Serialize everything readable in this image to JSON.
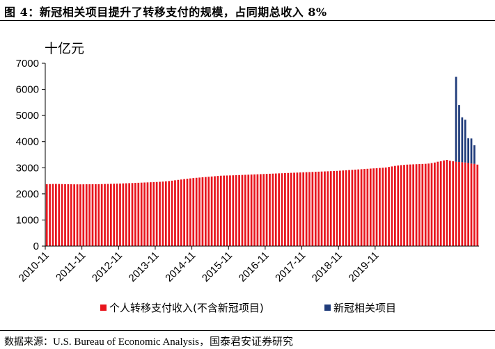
{
  "header": {
    "title": "图 4：新冠相关项目提升了转移支付的规模，占同期总收入 8%"
  },
  "footer": {
    "source_label": "数据来源：",
    "source_text": "U.S. Bureau of Economic Analysis，国泰君安证券研究"
  },
  "colors": {
    "base": "#e8141c",
    "covid": "#1f3b7a",
    "axis": "#000000"
  },
  "chart_data": {
    "type": "bar",
    "stacked": true,
    "unit_label": "十亿元",
    "ylim": [
      0,
      7000
    ],
    "yticks": [
      0,
      1000,
      2000,
      3000,
      4000,
      5000,
      6000,
      7000
    ],
    "x_start": "2010-11",
    "x_end": "2020-12",
    "xticks": [
      "2010-11",
      "2011-11",
      "2012-11",
      "2013-11",
      "2014-11",
      "2015-11",
      "2016-11",
      "2017-11",
      "2018-11",
      "2019-11"
    ],
    "legend_position": "bottom",
    "series": [
      {
        "name": "个人转移支付收入(不含新冠项目)",
        "values": [
          2370,
          2375,
          2378,
          2380,
          2378,
          2375,
          2372,
          2370,
          2368,
          2365,
          2365,
          2365,
          2366,
          2368,
          2368,
          2370,
          2370,
          2372,
          2375,
          2378,
          2380,
          2383,
          2386,
          2390,
          2395,
          2400,
          2405,
          2410,
          2415,
          2420,
          2425,
          2430,
          2435,
          2440,
          2445,
          2450,
          2455,
          2462,
          2470,
          2480,
          2490,
          2505,
          2520,
          2535,
          2550,
          2565,
          2580,
          2592,
          2605,
          2615,
          2625,
          2635,
          2645,
          2655,
          2665,
          2675,
          2685,
          2695,
          2700,
          2703,
          2706,
          2710,
          2715,
          2720,
          2725,
          2730,
          2735,
          2740,
          2745,
          2750,
          2755,
          2760,
          2765,
          2770,
          2775,
          2780,
          2785,
          2790,
          2795,
          2800,
          2805,
          2810,
          2815,
          2820,
          2825,
          2830,
          2835,
          2840,
          2845,
          2850,
          2855,
          2860,
          2865,
          2870,
          2875,
          2880,
          2888,
          2896,
          2904,
          2912,
          2920,
          2928,
          2936,
          2944,
          2952,
          2960,
          2968,
          2976,
          2984,
          2992,
          3000,
          3010,
          3030,
          3050,
          3070,
          3085,
          3100,
          3110,
          3120,
          3125,
          3130,
          3135,
          3140,
          3145,
          3150,
          3160,
          3180,
          3200,
          3230,
          3250,
          3280,
          3300,
          3270,
          3250,
          3230,
          3220,
          3210,
          3200,
          3180,
          3160,
          3150,
          3120
        ],
        "color": "#e8141c"
      },
      {
        "name": "新冠相关项目",
        "values": [
          0,
          0,
          0,
          0,
          0,
          0,
          0,
          0,
          0,
          0,
          0,
          0,
          0,
          0,
          0,
          0,
          0,
          0,
          0,
          0,
          0,
          0,
          0,
          0,
          0,
          0,
          0,
          0,
          0,
          0,
          0,
          0,
          0,
          0,
          0,
          0,
          0,
          0,
          0,
          0,
          0,
          0,
          0,
          0,
          0,
          0,
          0,
          0,
          0,
          0,
          0,
          0,
          0,
          0,
          0,
          0,
          0,
          0,
          0,
          0,
          0,
          0,
          0,
          0,
          0,
          0,
          0,
          0,
          0,
          0,
          0,
          0,
          0,
          0,
          0,
          0,
          0,
          0,
          0,
          0,
          0,
          0,
          0,
          0,
          0,
          0,
          0,
          0,
          0,
          0,
          0,
          0,
          0,
          0,
          0,
          0,
          0,
          0,
          0,
          0,
          0,
          0,
          0,
          0,
          0,
          0,
          0,
          0,
          0,
          0,
          0,
          0,
          0,
          0,
          0,
          0,
          0,
          0,
          0,
          0,
          0,
          0,
          0,
          0,
          0,
          0,
          0,
          0,
          0,
          0,
          0,
          0,
          0,
          0,
          3250,
          2180,
          1720,
          1640,
          950,
          960,
          710
        ],
        "color": "#1f3b7a"
      }
    ]
  }
}
